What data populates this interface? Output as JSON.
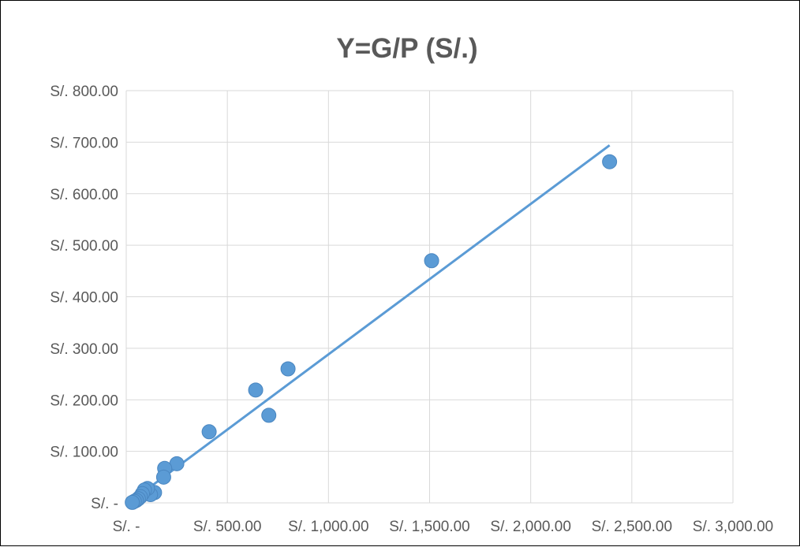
{
  "chart_data": {
    "type": "scatter",
    "title": "Y=G/P (S/.)",
    "xlabel": "",
    "ylabel": "",
    "xlim": [
      0,
      3000
    ],
    "ylim": [
      0,
      800
    ],
    "x_ticks": [
      {
        "value": 0,
        "label": "S/. -"
      },
      {
        "value": 500,
        "label": "S/. 500.00"
      },
      {
        "value": 1000,
        "label": "S/. 1,000.00"
      },
      {
        "value": 1500,
        "label": "S/. 1,500.00"
      },
      {
        "value": 2000,
        "label": "S/. 2,000.00"
      },
      {
        "value": 2500,
        "label": "S/. 2,500.00"
      },
      {
        "value": 3000,
        "label": "S/. 3,000.00"
      }
    ],
    "y_ticks": [
      {
        "value": 0,
        "label": "S/. -"
      },
      {
        "value": 100,
        "label": "S/. 100.00"
      },
      {
        "value": 200,
        "label": "S/. 200.00"
      },
      {
        "value": 300,
        "label": "S/. 300.00"
      },
      {
        "value": 400,
        "label": "S/. 400.00"
      },
      {
        "value": 500,
        "label": "S/. 500.00"
      },
      {
        "value": 600,
        "label": "S/. 600.00"
      },
      {
        "value": 700,
        "label": "S/. 700.00"
      },
      {
        "value": 800,
        "label": "S/. 800.00"
      }
    ],
    "grid": true,
    "legend": "none",
    "series": [
      {
        "points": [
          {
            "x": 2390,
            "y": 662
          },
          {
            "x": 1510,
            "y": 470
          },
          {
            "x": 800,
            "y": 260
          },
          {
            "x": 640,
            "y": 219
          },
          {
            "x": 705,
            "y": 170
          },
          {
            "x": 410,
            "y": 138
          },
          {
            "x": 250,
            "y": 76
          },
          {
            "x": 190,
            "y": 67
          },
          {
            "x": 185,
            "y": 50
          },
          {
            "x": 140,
            "y": 20
          },
          {
            "x": 120,
            "y": 16
          },
          {
            "x": 105,
            "y": 28
          },
          {
            "x": 90,
            "y": 25
          },
          {
            "x": 80,
            "y": 18
          },
          {
            "x": 70,
            "y": 12
          },
          {
            "x": 60,
            "y": 8
          },
          {
            "x": 50,
            "y": 5
          },
          {
            "x": 40,
            "y": 3
          },
          {
            "x": 30,
            "y": 1
          }
        ],
        "trendline": {
          "x": [
            30,
            2390
          ],
          "y": [
            5,
            694
          ]
        }
      }
    ],
    "colors": {
      "marker": "#5B9BD5",
      "trendline": "#5B9BD5",
      "grid": "#D9D9D9",
      "text": "#595959"
    }
  }
}
